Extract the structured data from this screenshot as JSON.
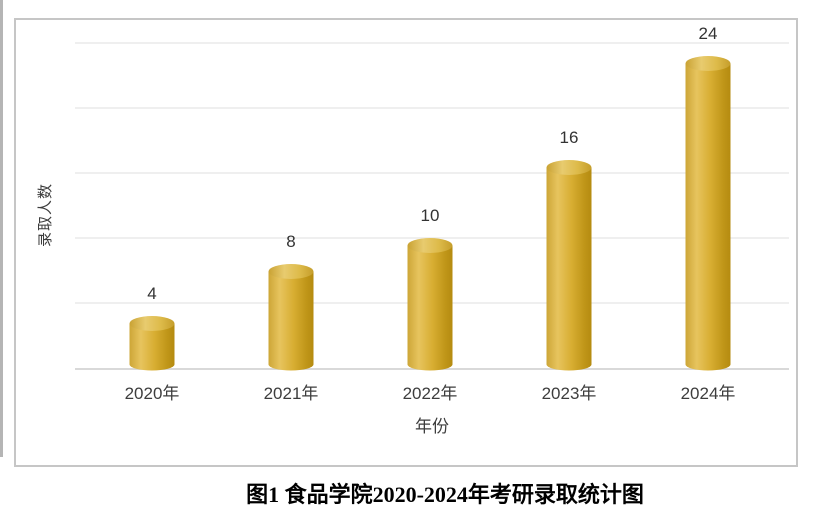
{
  "figure": {
    "caption": "图1 食品学院2020-2024年考研录取统计图"
  },
  "chart_data": {
    "type": "bar",
    "style": "3d-cylinder",
    "title": "",
    "categories": [
      "2020年",
      "2021年",
      "2022年",
      "2023年",
      "2024年"
    ],
    "values": [
      4,
      8,
      10,
      16,
      24
    ],
    "xlabel": "年份",
    "ylabel": "录取人数",
    "ylim": [
      0,
      25
    ],
    "grid_interval": 5,
    "grid": true,
    "legend": "none",
    "value_labels_shown": true,
    "colors": {
      "bar_body_gradient": [
        "#cda637",
        "#e7c45e",
        "#d8ae33",
        "#bf9518",
        "#b58b10"
      ],
      "bar_body_stops": [
        0,
        0.25,
        0.55,
        0.85,
        1
      ],
      "bar_top_gradient": [
        "#c9a233",
        "#e8cb6f",
        "#ddba49",
        "#c59e2b"
      ],
      "bar_top_stops": [
        0,
        0.35,
        0.7,
        1
      ],
      "gridline": "#efefef",
      "axis_line": "#d9d9d9",
      "tick_label": "#3d3d3d",
      "value_label": "#333333",
      "axis_title": "#3d3d3d",
      "panel_border": "#c6c6c6",
      "page_edge": "#b5b5b5",
      "caption_text": "#000000"
    }
  }
}
